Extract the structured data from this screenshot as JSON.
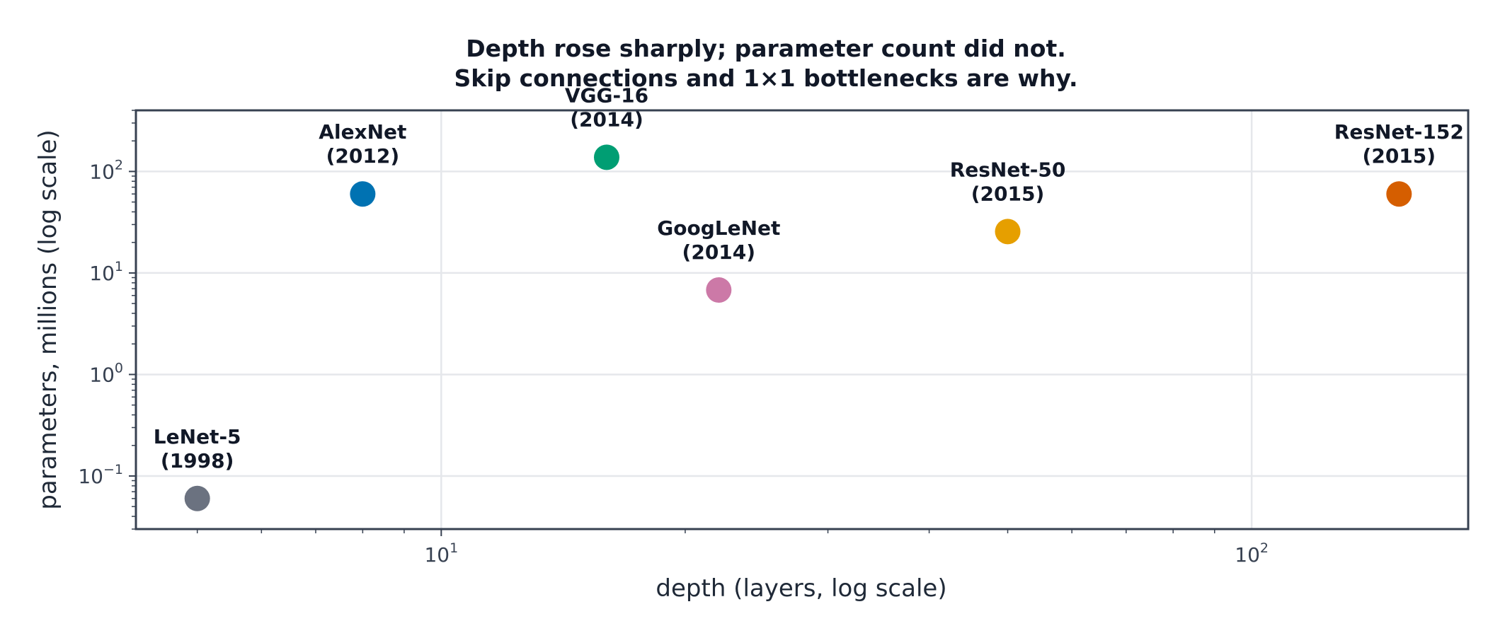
{
  "chart_data": {
    "type": "scatter",
    "title": [
      "Depth rose sharply; parameter count did not.",
      "Skip connections and 1×1 bottlenecks are why."
    ],
    "xlabel": "depth (layers, log scale)",
    "ylabel": "parameters, millions (log scale)",
    "xscale": "log",
    "yscale": "log",
    "xlim": [
      4.2,
      185
    ],
    "ylim": [
      0.03,
      400
    ],
    "grid": true,
    "x_ticks": [
      {
        "base": "10",
        "exp": "1",
        "value": 10
      },
      {
        "base": "10",
        "exp": "2",
        "value": 100
      }
    ],
    "y_ticks": [
      {
        "base": "10",
        "exp": "−1",
        "value": 0.1
      },
      {
        "base": "10",
        "exp": "0",
        "value": 1
      },
      {
        "base": "10",
        "exp": "1",
        "value": 10
      },
      {
        "base": "10",
        "exp": "2",
        "value": 100
      }
    ],
    "points": [
      {
        "name": "LeNet-5",
        "year": "(1998)",
        "x": 5,
        "y": 0.06,
        "color": "#6b7280"
      },
      {
        "name": "AlexNet",
        "year": "(2012)",
        "x": 8,
        "y": 60,
        "color": "#0072b2"
      },
      {
        "name": "VGG-16",
        "year": "(2014)",
        "x": 16,
        "y": 138,
        "color": "#009e73"
      },
      {
        "name": "GoogLeNet",
        "year": "(2014)",
        "x": 22,
        "y": 6.8,
        "color": "#cc79a7"
      },
      {
        "name": "ResNet-50",
        "year": "(2015)",
        "x": 50,
        "y": 25.6,
        "color": "#e69f00"
      },
      {
        "name": "ResNet-152",
        "year": "(2015)",
        "x": 152,
        "y": 60,
        "color": "#d55e00"
      }
    ]
  }
}
